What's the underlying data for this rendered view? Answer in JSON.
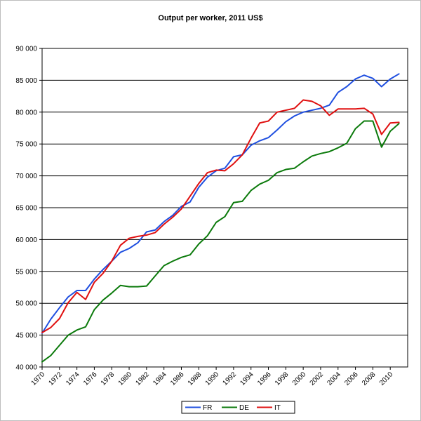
{
  "chart_data": {
    "type": "line",
    "title": "Output per worker, 2011 US$",
    "xlabel": "",
    "ylabel": "",
    "ylim": [
      40000,
      90000
    ],
    "xlim": [
      1970,
      2012
    ],
    "grid": "horizontal",
    "legend_position": "bottom",
    "y_ticks": [
      "40 000",
      "45 000",
      "50 000",
      "55 000",
      "60 000",
      "65 000",
      "70 000",
      "75 000",
      "80 000",
      "85 000",
      "90 000"
    ],
    "x_ticks": [
      "1970",
      "1972",
      "1974",
      "1976",
      "1978",
      "1980",
      "1982",
      "1984",
      "1986",
      "1988",
      "1990",
      "1992",
      "1994",
      "1996",
      "1998",
      "2000",
      "2002",
      "2004",
      "2006",
      "2008",
      "2010"
    ],
    "x": [
      1970,
      1971,
      1972,
      1973,
      1974,
      1975,
      1976,
      1977,
      1978,
      1979,
      1980,
      1981,
      1982,
      1983,
      1984,
      1985,
      1986,
      1987,
      1988,
      1989,
      1990,
      1991,
      1992,
      1993,
      1994,
      1995,
      1996,
      1997,
      1998,
      1999,
      2000,
      2001,
      2002,
      2003,
      2004,
      2005,
      2006,
      2007,
      2008,
      2009,
      2010,
      2011
    ],
    "series": [
      {
        "name": "FR",
        "color": "#1f4fe0",
        "values": [
          45300,
          47500,
          49300,
          51000,
          52000,
          52000,
          53800,
          55300,
          56600,
          58000,
          58600,
          59500,
          61200,
          61500,
          62800,
          63800,
          65200,
          65900,
          68200,
          69800,
          70800,
          71200,
          73000,
          73300,
          74800,
          75500,
          76000,
          77200,
          78500,
          79400,
          80000,
          80300,
          80600,
          81100,
          83100,
          84000,
          85200,
          85800,
          85300,
          84000,
          85200,
          86000
        ]
      },
      {
        "name": "DE",
        "color": "#0b7a0b",
        "values": [
          40800,
          41800,
          43400,
          45000,
          45800,
          46300,
          49000,
          50500,
          51600,
          52800,
          52600,
          52600,
          52700,
          54300,
          55900,
          56600,
          57200,
          57600,
          59300,
          60600,
          62700,
          63600,
          65800,
          66000,
          67700,
          68700,
          69300,
          70500,
          71000,
          71200,
          72200,
          73100,
          73500,
          73800,
          74400,
          75100,
          77400,
          78600,
          78600,
          74500,
          77000,
          78200
        ]
      },
      {
        "name": "IT",
        "color": "#e01010",
        "values": [
          45400,
          46200,
          47600,
          50100,
          51700,
          50600,
          53300,
          54700,
          56600,
          59100,
          60200,
          60500,
          60700,
          61100,
          62400,
          63500,
          64800,
          66800,
          68800,
          70500,
          70900,
          70800,
          71900,
          73300,
          75900,
          78300,
          78600,
          80000,
          80300,
          80600,
          81900,
          81700,
          81000,
          79500,
          80500,
          80500,
          80500,
          80600,
          79700,
          76500,
          78300,
          78400
        ]
      }
    ]
  }
}
